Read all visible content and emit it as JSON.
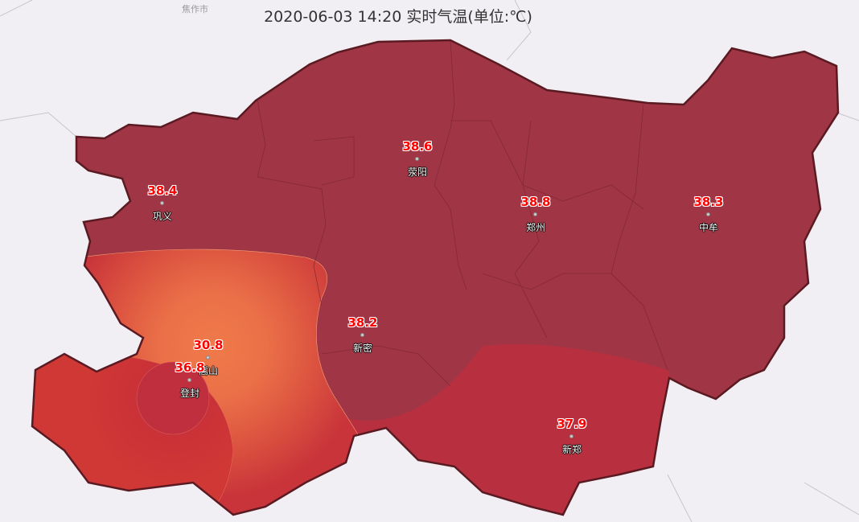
{
  "title": "2020-06-03 14:20 实时气温(单位:℃)",
  "background_city_label": "焦作市",
  "colors": {
    "base": "#a03545",
    "warm_red": "#b8303f",
    "red": "#cc3336",
    "orange": "#ec7a4c",
    "boundary": "#5a1a22"
  },
  "stations": [
    {
      "name": "巩义",
      "value": "38.4"
    },
    {
      "name": "荥阳",
      "value": "38.6"
    },
    {
      "name": "郑州",
      "value": "38.8"
    },
    {
      "name": "中牟",
      "value": "38.3"
    },
    {
      "name": "新密",
      "value": "38.2"
    },
    {
      "name": "嵩山",
      "value": "30.8"
    },
    {
      "name": "登封",
      "value": "36.8"
    },
    {
      "name": "新郑",
      "value": "37.9"
    }
  ]
}
